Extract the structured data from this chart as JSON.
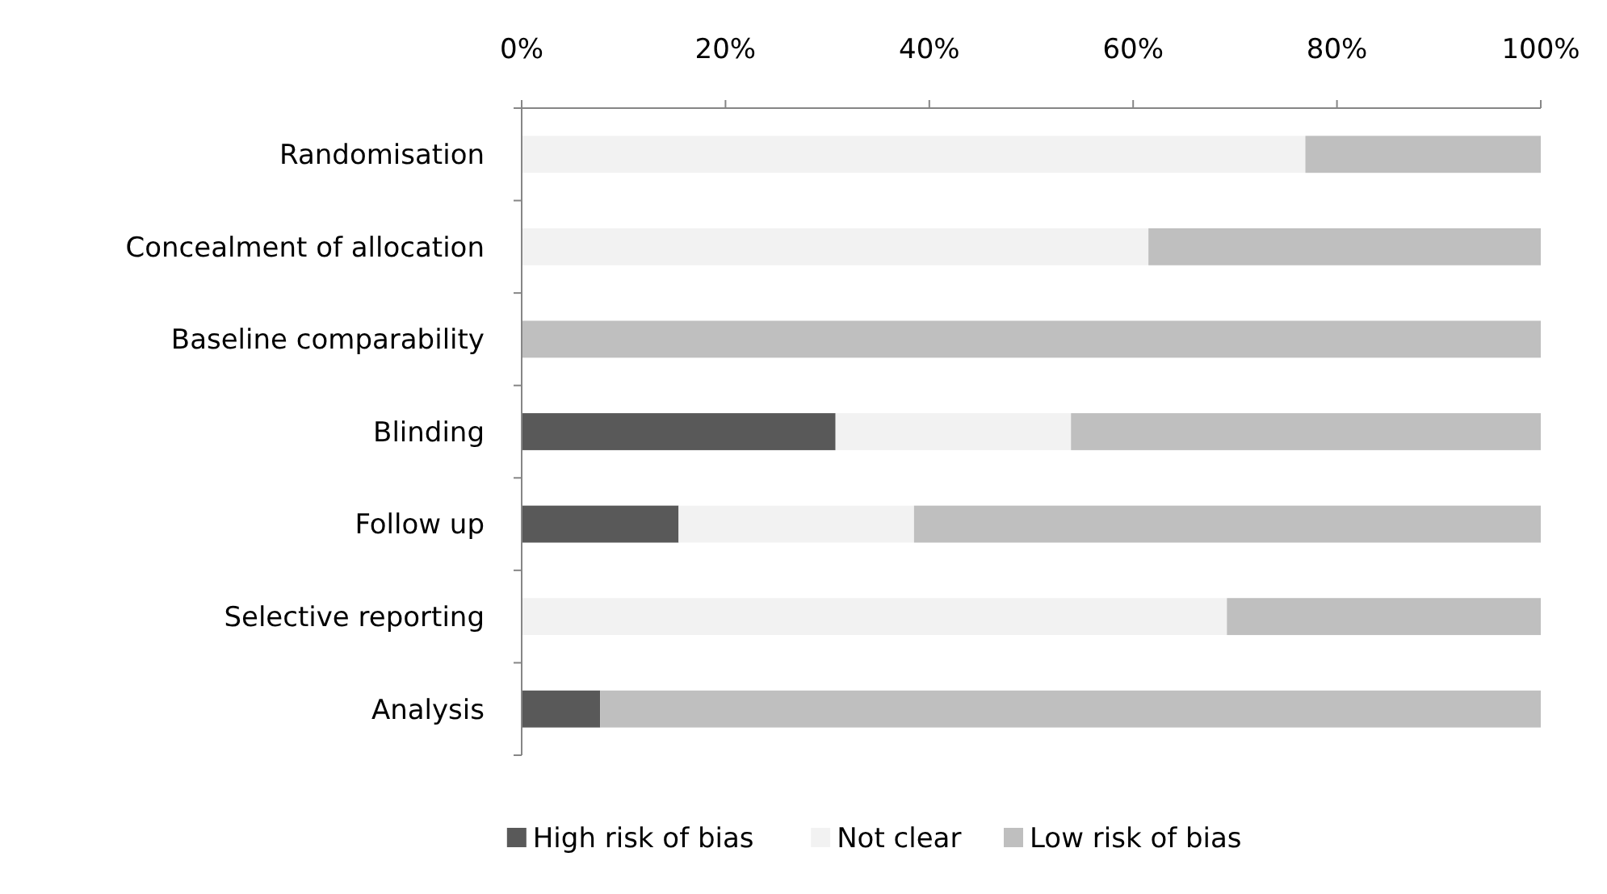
{
  "chart_data": {
    "type": "bar",
    "orientation": "horizontal",
    "stacked": true,
    "categories": [
      "Randomisation",
      "Concealment of allocation",
      "Baseline comparability",
      "Blinding",
      "Follow up",
      "Selective reporting",
      "Analysis"
    ],
    "series": [
      {
        "name": "High risk of bias",
        "color": "#595959",
        "values": [
          0,
          0,
          0,
          30.8,
          15.4,
          0,
          7.7
        ]
      },
      {
        "name": "Not clear",
        "color": "#f2f2f2",
        "values": [
          76.9,
          61.5,
          0,
          23.1,
          23.1,
          69.2,
          0
        ]
      },
      {
        "name": "Low risk of bias",
        "color": "#bfbfbf",
        "values": [
          23.1,
          38.5,
          100,
          46.1,
          61.5,
          30.8,
          92.3
        ]
      }
    ],
    "xlim": [
      0,
      100
    ],
    "xticks": [
      {
        "value": 0,
        "label": "0%"
      },
      {
        "value": 20,
        "label": "20%"
      },
      {
        "value": 40,
        "label": "40%"
      },
      {
        "value": 60,
        "label": "60%"
      },
      {
        "value": 80,
        "label": "80%"
      },
      {
        "value": 100,
        "label": "100%"
      }
    ],
    "grid": false,
    "legend": "bottom"
  }
}
